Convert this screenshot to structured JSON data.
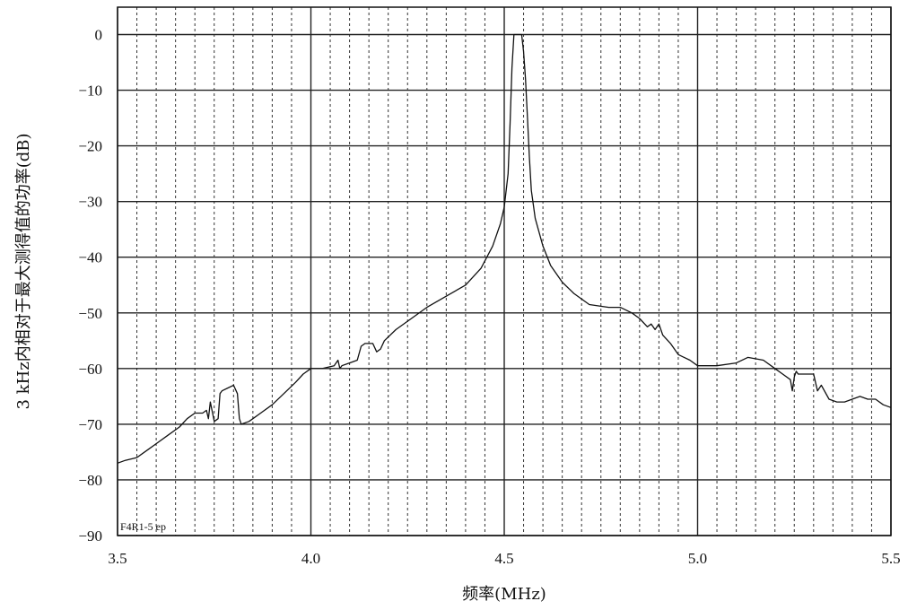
{
  "chart_data": {
    "type": "line",
    "xlabel": "频率(MHz)",
    "ylabel": "3 kHz内相对于最大测得值的功率(dB)",
    "annotation": "F4R1-5 ep",
    "xlim": [
      3.5,
      5.5
    ],
    "ylim": [
      -90,
      5
    ],
    "x_major_ticks": [
      3.5,
      4.0,
      4.5,
      5.0,
      5.5
    ],
    "x_tick_labels": [
      "3.5",
      "4.0",
      "4.5",
      "5.0",
      "5.5"
    ],
    "x_minor_step": 0.05,
    "y_ticks": [
      0,
      -10,
      -20,
      -30,
      -40,
      -50,
      -60,
      -70,
      -80,
      -90
    ],
    "y_tick_labels": [
      "0",
      "−10",
      "−20",
      "−30",
      "−40",
      "−50",
      "−60",
      "−70",
      "−80",
      "−90"
    ],
    "grid": true,
    "colors": {
      "line": "#111111",
      "grid": "#222222",
      "background": "#ffffff"
    },
    "series": [
      {
        "x": [
          3.5,
          3.52,
          3.55,
          3.58,
          3.6,
          3.63,
          3.66,
          3.68,
          3.7,
          3.72,
          3.73,
          3.735,
          3.74,
          3.75,
          3.76,
          3.765,
          3.77,
          3.8,
          3.81,
          3.815,
          3.82,
          3.84,
          3.85,
          3.87,
          3.9,
          3.93,
          3.96,
          3.98,
          4.0,
          4.03,
          4.06,
          4.07,
          4.075,
          4.08,
          4.1,
          4.12,
          4.13,
          4.14,
          4.16,
          4.17,
          4.18,
          4.19,
          4.22,
          4.26,
          4.3,
          4.35,
          4.4,
          4.44,
          4.47,
          4.49,
          4.5,
          4.51,
          4.515,
          4.52,
          4.525,
          4.53,
          4.54,
          4.545,
          4.55,
          4.555,
          4.56,
          4.565,
          4.57,
          4.58,
          4.6,
          4.62,
          4.65,
          4.68,
          4.72,
          4.77,
          4.8,
          4.83,
          4.85,
          4.87,
          4.88,
          4.89,
          4.9,
          4.91,
          4.93,
          4.95,
          4.98,
          5.0,
          5.05,
          5.1,
          5.13,
          5.17,
          5.2,
          5.22,
          5.24,
          5.245,
          5.25,
          5.255,
          5.26,
          5.3,
          5.31,
          5.32,
          5.34,
          5.36,
          5.38,
          5.4,
          5.42,
          5.44,
          5.46,
          5.48,
          5.5
        ],
        "y": [
          -77,
          -76.5,
          -76,
          -74.5,
          -73.5,
          -72,
          -70.5,
          -69,
          -68,
          -68,
          -67.5,
          -69,
          -66,
          -69.5,
          -69,
          -64.5,
          -64,
          -63,
          -64.5,
          -69,
          -70,
          -69.5,
          -69,
          -68,
          -66.5,
          -64.5,
          -62.5,
          -61,
          -60,
          -60,
          -59.5,
          -58.5,
          -60,
          -59.5,
          -59,
          -58.5,
          -56,
          -55.5,
          -55.5,
          -57,
          -56.5,
          -55,
          -53,
          -51,
          -49,
          -47,
          -45,
          -42,
          -38,
          -34,
          -31,
          -25,
          -16,
          -6,
          0,
          0,
          0,
          0,
          -3,
          -8,
          -15,
          -22,
          -28,
          -33,
          -38,
          -41.5,
          -44.5,
          -46.5,
          -48.5,
          -49,
          -49,
          -50,
          -51,
          -52.5,
          -52,
          -53,
          -52,
          -54,
          -55.5,
          -57.5,
          -58.5,
          -59.5,
          -59.5,
          -59,
          -58,
          -58.5,
          -60,
          -61,
          -62,
          -64,
          -61.5,
          -60.5,
          -61,
          -61,
          -64,
          -63,
          -65.5,
          -66,
          -66,
          -65.5,
          -65,
          -65.5,
          -65.5,
          -66.5,
          -67
        ]
      }
    ]
  }
}
